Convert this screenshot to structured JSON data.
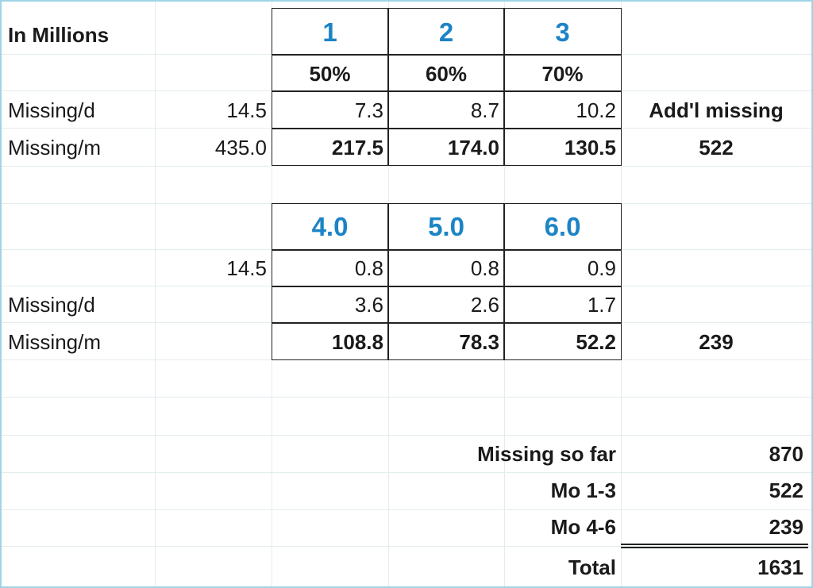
{
  "header": {
    "title": "In Millions"
  },
  "table1": {
    "months": [
      "1",
      "2",
      "3"
    ],
    "rates": [
      "50%",
      "60%",
      "70%"
    ],
    "row_missing_d": {
      "label": "Missing/d",
      "base": "14.5",
      "values": [
        "7.3",
        "8.7",
        "10.2"
      ],
      "extra_label": "Add'l missing"
    },
    "row_missing_m": {
      "label": "Missing/m",
      "base": "435.0",
      "values": [
        "217.5",
        "174.0",
        "130.5"
      ],
      "total": "522"
    }
  },
  "table2": {
    "months": [
      "4.0",
      "5.0",
      "6.0"
    ],
    "row_factor": {
      "base": "14.5",
      "values": [
        "0.8",
        "0.8",
        "0.9"
      ]
    },
    "row_missing_d": {
      "label": "Missing/d",
      "values": [
        "3.6",
        "2.6",
        "1.7"
      ]
    },
    "row_missing_m": {
      "label": "Missing/m",
      "values": [
        "108.8",
        "78.3",
        "52.2"
      ],
      "total": "239"
    }
  },
  "summary": [
    {
      "label": "Missing so far",
      "value": "870"
    },
    {
      "label": "Mo 1-3",
      "value": "522"
    },
    {
      "label": "Mo 4-6",
      "value": "239"
    },
    {
      "label": "Total",
      "value": "1631"
    }
  ]
}
